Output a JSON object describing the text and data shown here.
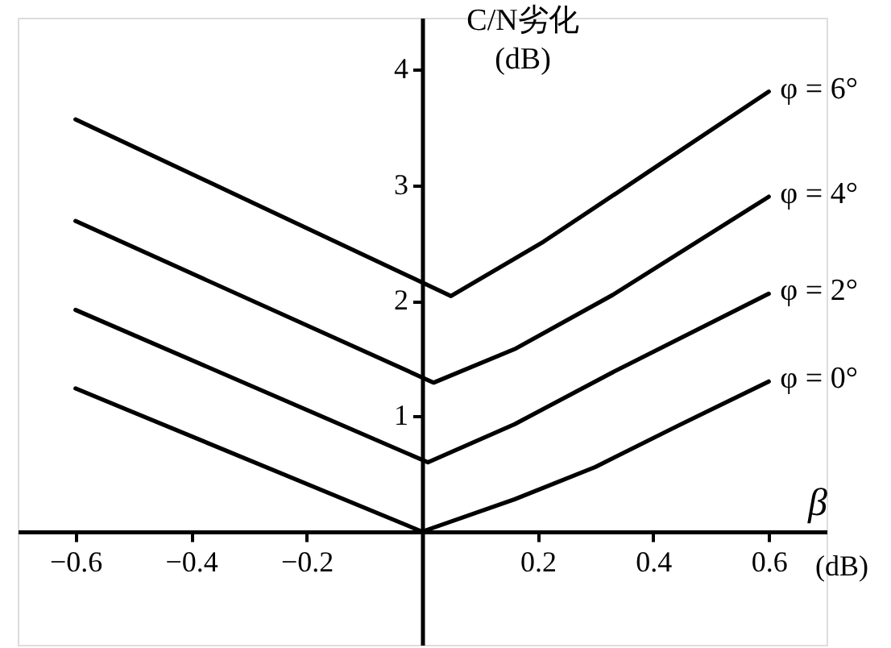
{
  "chart_data": {
    "type": "line",
    "ylabel": "C/N劣化 (dB)",
    "xlabel": "β",
    "annotations": [
      "(dB)"
    ],
    "xlim": [
      -0.7,
      0.7
    ],
    "ylim": [
      -0.98,
      4.45
    ],
    "xticks": [
      -0.6,
      -0.4,
      -0.2,
      0.2,
      0.4,
      0.6
    ],
    "yticks": [
      1,
      2,
      3,
      4
    ],
    "series": [
      {
        "name": "φ = 0°",
        "color": "#000000",
        "x": [
          -0.6,
          0,
          0.16,
          0.3,
          0.44,
          0.6
        ],
        "values": [
          1.24,
          0,
          0.28,
          0.56,
          0.91,
          1.3
        ]
      },
      {
        "name": "φ = 2°",
        "color": "#000000",
        "x": [
          -0.6,
          0.01,
          0.16,
          0.33,
          0.6
        ],
        "values": [
          1.92,
          0.6,
          0.93,
          1.38,
          2.06
        ]
      },
      {
        "name": "φ = 4°",
        "color": "#000000",
        "x": [
          -0.6,
          0.02,
          0.16,
          0.33,
          0.6
        ],
        "values": [
          2.69,
          1.29,
          1.58,
          2.05,
          2.9
        ]
      },
      {
        "name": "φ = 6°",
        "color": "#000000",
        "x": [
          -0.6,
          0.05,
          0.21,
          0.39,
          0.6
        ],
        "values": [
          3.57,
          2.04,
          2.51,
          3.11,
          3.81
        ]
      }
    ]
  }
}
